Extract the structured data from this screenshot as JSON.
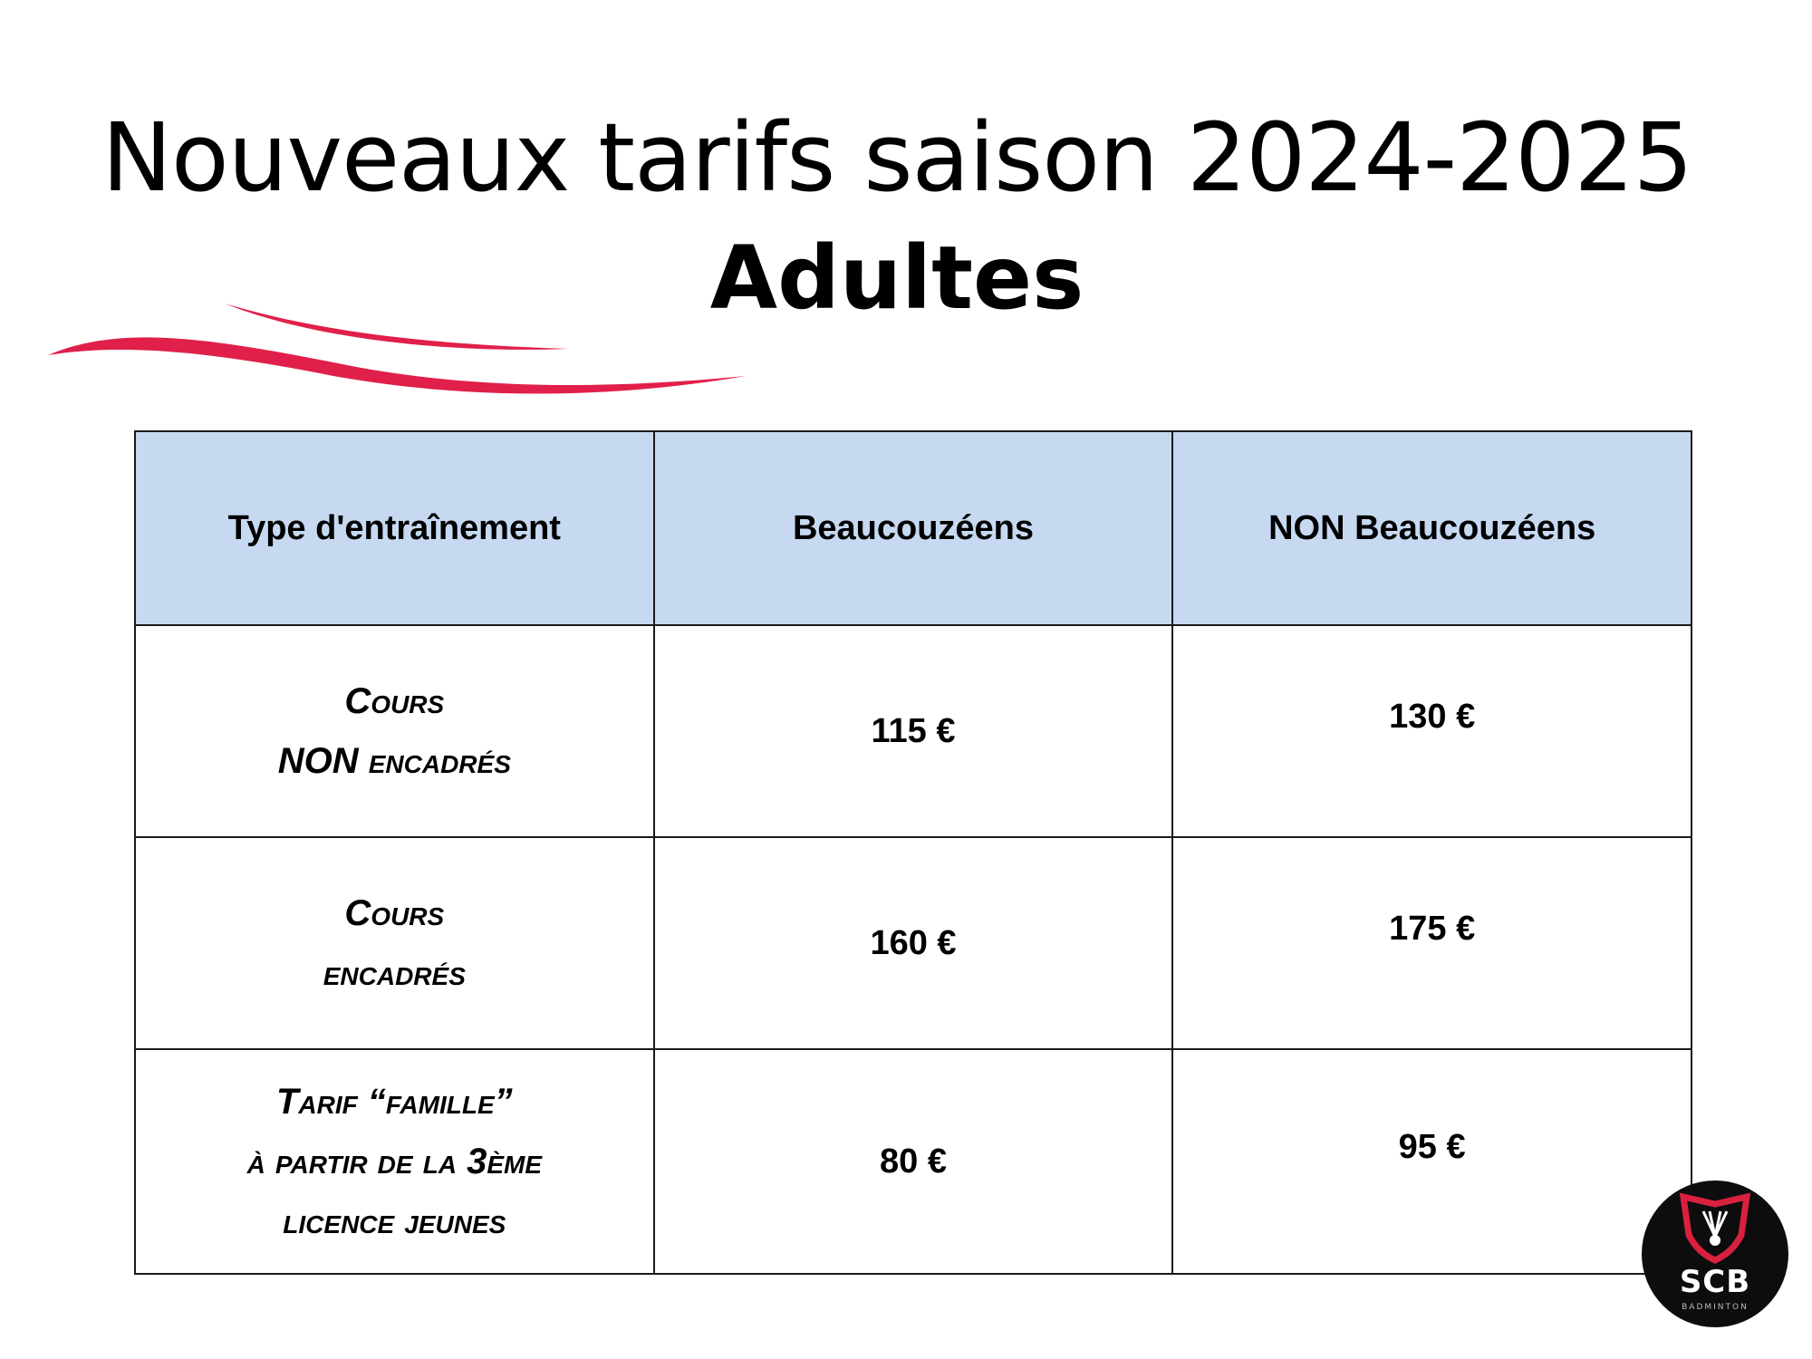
{
  "title": "Nouveaux tarifs saison 2024-2025",
  "subtitle": "Adultes",
  "table": {
    "headers": [
      "Type d'entraînement",
      "Beaucouzéens",
      "NON Beaucouzéens"
    ],
    "rows": [
      {
        "type_lines": [
          "Cours",
          "NON encadrés"
        ],
        "beaucouzeens": "115 €",
        "non_beaucouzeens": "130 €"
      },
      {
        "type_lines": [
          "Cours",
          "encadrés"
        ],
        "beaucouzeens": "160 €",
        "non_beaucouzeens": "175 €"
      },
      {
        "type_lines": [
          "Tarif “famille”",
          "à partir de la 3ème",
          "licence jeunes"
        ],
        "beaucouzeens": "80 €",
        "non_beaucouzeens": "95 €"
      }
    ]
  },
  "logo": {
    "name": "SCB",
    "sub": "BADMINTON"
  },
  "colors": {
    "header_bg": "#c6d9f1",
    "swoosh": "#e0204a",
    "logo_bg": "#0d0d0d",
    "logo_accent": "#d9203f"
  }
}
